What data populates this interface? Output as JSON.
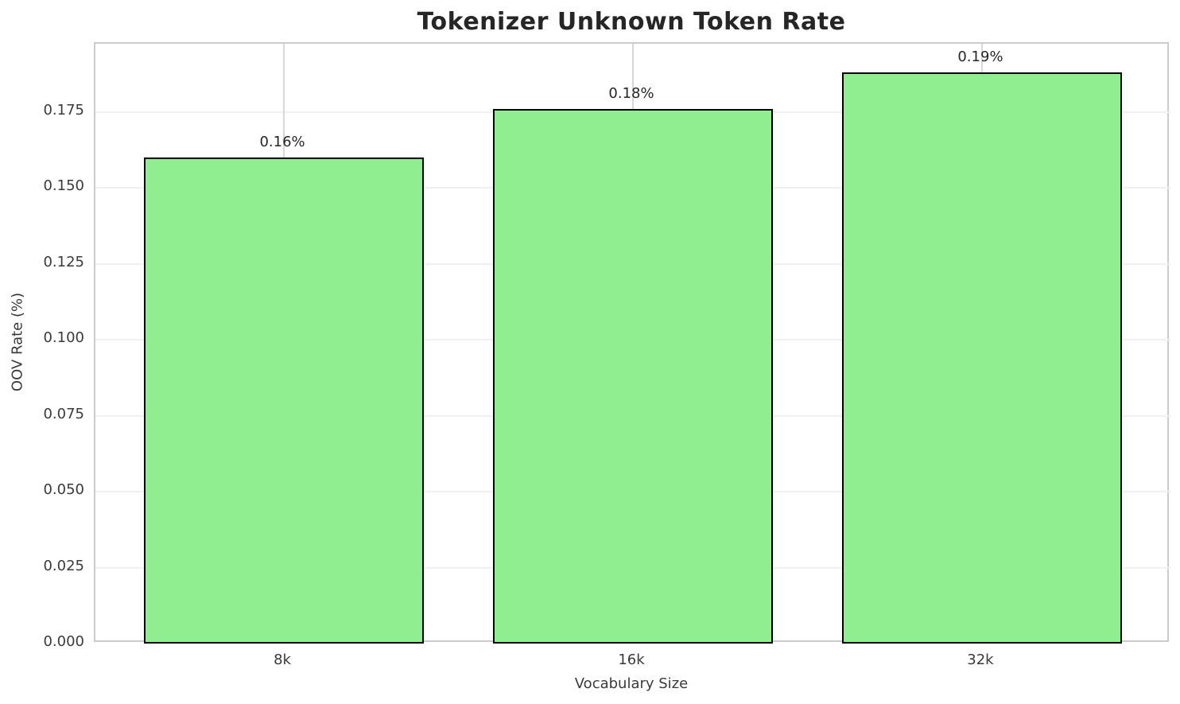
{
  "title": "Tokenizer Unknown Token Rate",
  "chart_data": {
    "type": "bar",
    "title": "Tokenizer Unknown Token Rate",
    "xlabel": "Vocabulary Size",
    "ylabel": "OOV Rate (%)",
    "categories": [
      "8k",
      "16k",
      "32k"
    ],
    "values": [
      0.16,
      0.176,
      0.188
    ],
    "bar_labels": [
      "0.16%",
      "0.18%",
      "0.19%"
    ],
    "ylim": [
      0,
      0.1974
    ],
    "yticks": [
      0.0,
      0.025,
      0.05,
      0.075,
      0.1,
      0.125,
      0.15,
      0.175
    ],
    "ytick_labels": [
      "0.000",
      "0.025",
      "0.050",
      "0.075",
      "0.100",
      "0.125",
      "0.150",
      "0.175"
    ],
    "grid": true,
    "legend": "none",
    "bar_color": "#90EE90",
    "bar_edge_color": "#000000",
    "background_color": "#ffffff"
  }
}
